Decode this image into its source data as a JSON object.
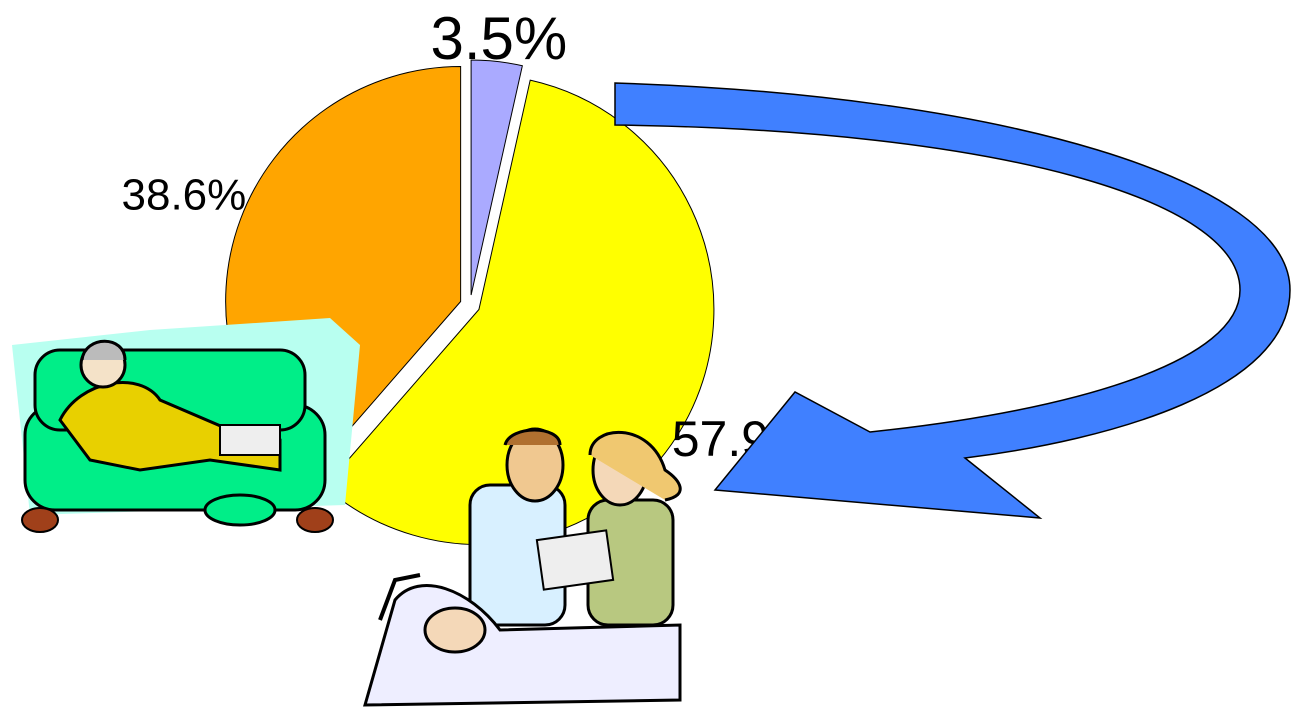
{
  "chart_data": {
    "type": "pie",
    "values": [
      3.5,
      57.9,
      38.6
    ],
    "value_labels": [
      "3.5%",
      "57.9%",
      "38.6%"
    ],
    "colors": [
      "#aaaaff",
      "#ffff00",
      "#ffa500"
    ]
  }
}
